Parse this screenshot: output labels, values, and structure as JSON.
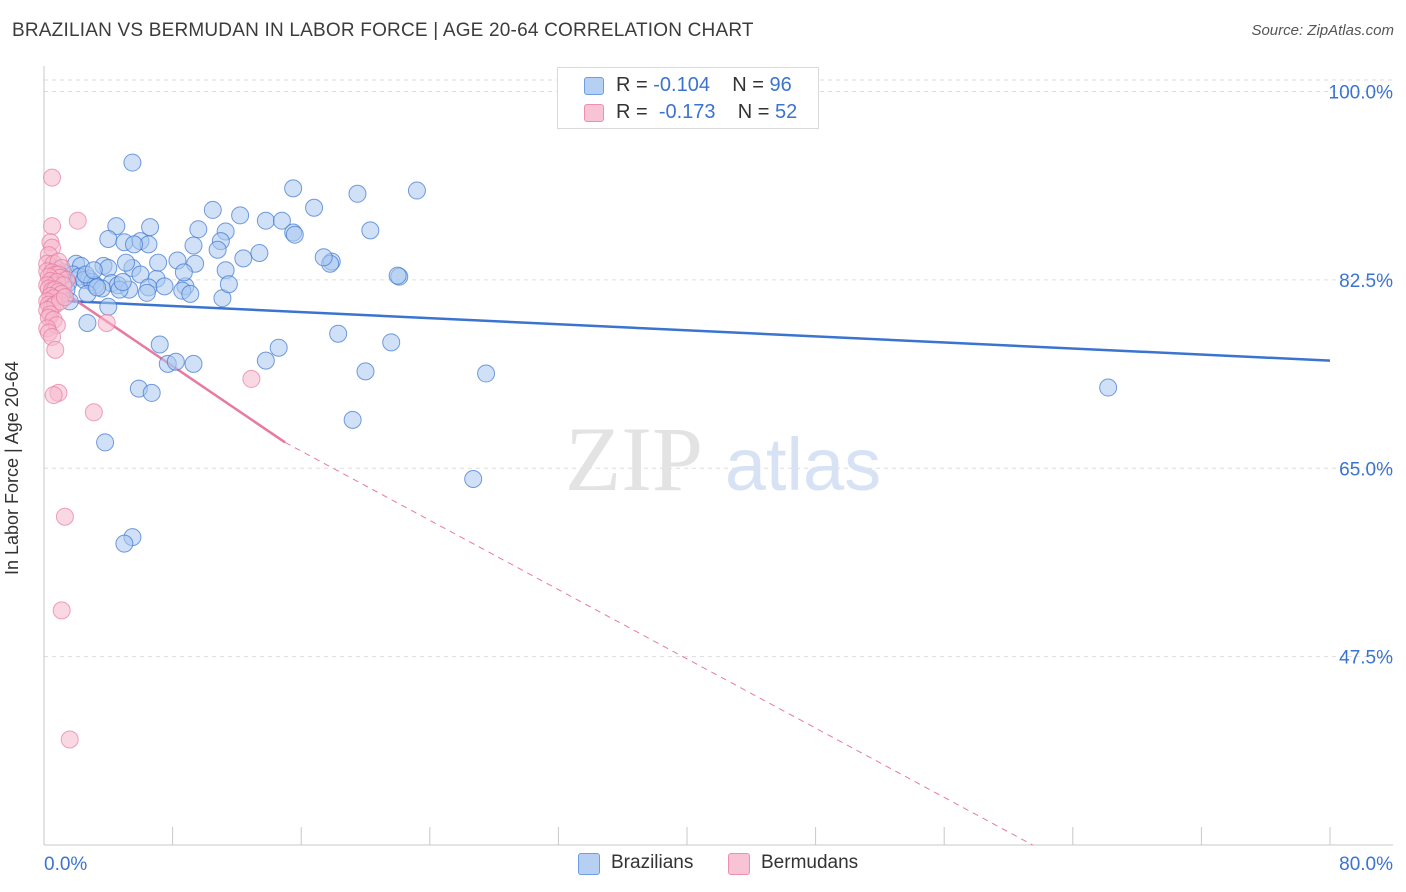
{
  "title": "BRAZILIAN VS BERMUDAN IN LABOR FORCE | AGE 20-64 CORRELATION CHART",
  "source": "Source: ZipAtlas.com",
  "colors": {
    "blue": "#3a74d0",
    "blue_fill": "#a9c8f0",
    "pink": "#e87aa0",
    "pink_fill": "#f6b8cc",
    "grid": "#dddddd",
    "axis_text": "#3a74d0"
  },
  "legend": {
    "series1": {
      "r_label": "R = ",
      "r_value": "-0.104",
      "n_label": "N = ",
      "n_value": "96"
    },
    "series2": {
      "r_label": "R = ",
      "r_value": "-0.173",
      "n_label": "N = ",
      "n_value": "52"
    }
  },
  "bottom_legend": {
    "series1": "Brazilians",
    "series2": "Bermudans"
  },
  "watermark": {
    "zip": "ZIP",
    "atlas": "atlas"
  },
  "chart_data": {
    "type": "scatter",
    "title": "BRAZILIAN VS BERMUDAN IN LABOR FORCE | AGE 20-64 CORRELATION CHART",
    "xlabel": "",
    "ylabel": "In Labor Force | Age 20-64",
    "xlim": [
      0,
      80
    ],
    "ylim": [
      30,
      102
    ],
    "x_tick_labels": [
      "0.0%",
      "80.0%"
    ],
    "y_ticks": [
      47.5,
      65.0,
      82.5,
      100.0
    ],
    "y_tick_labels": [
      "47.5%",
      "65.0%",
      "82.5%",
      "100.0%"
    ],
    "grid": true,
    "legend_position": "top-center",
    "series": [
      {
        "name": "Brazilians",
        "R": -0.104,
        "N": 96,
        "trend": {
          "x": [
            0.5,
            80.0
          ],
          "y": [
            80.6,
            75.0
          ],
          "style": "solid"
        },
        "points": [
          [
            5.5,
            93.4
          ],
          [
            15.5,
            91.0
          ],
          [
            19.5,
            90.5
          ],
          [
            10.5,
            89.0
          ],
          [
            12.2,
            88.5
          ],
          [
            13.8,
            88.0
          ],
          [
            14.8,
            88.0
          ],
          [
            4.5,
            87.5
          ],
          [
            6.6,
            87.4
          ],
          [
            9.6,
            87.2
          ],
          [
            11.3,
            87.0
          ],
          [
            4.0,
            86.3
          ],
          [
            11.0,
            86.1
          ],
          [
            5.0,
            86.0
          ],
          [
            6.0,
            86.1
          ],
          [
            9.3,
            85.7
          ],
          [
            6.5,
            85.8
          ],
          [
            5.6,
            85.8
          ],
          [
            10.8,
            85.3
          ],
          [
            12.4,
            84.5
          ],
          [
            9.4,
            84.0
          ],
          [
            8.3,
            84.3
          ],
          [
            13.4,
            85.0
          ],
          [
            17.9,
            84.2
          ],
          [
            17.8,
            84.0
          ],
          [
            2.0,
            84.0
          ],
          [
            2.3,
            83.8
          ],
          [
            3.7,
            83.8
          ],
          [
            4.0,
            83.6
          ],
          [
            5.5,
            83.6
          ],
          [
            6.0,
            83.0
          ],
          [
            7.0,
            82.6
          ],
          [
            0.8,
            83.5
          ],
          [
            1.2,
            83.2
          ],
          [
            1.8,
            83.0
          ],
          [
            2.2,
            82.8
          ],
          [
            2.8,
            82.6
          ],
          [
            0.5,
            82.5
          ],
          [
            0.7,
            82.2
          ],
          [
            1.5,
            82.2
          ],
          [
            2.5,
            82.5
          ],
          [
            3.0,
            82.3
          ],
          [
            3.2,
            82.0
          ],
          [
            4.2,
            82.2
          ],
          [
            4.6,
            82.0
          ],
          [
            3.6,
            81.7
          ],
          [
            6.5,
            81.8
          ],
          [
            8.8,
            81.9
          ],
          [
            5.3,
            81.6
          ],
          [
            8.6,
            81.5
          ],
          [
            6.4,
            81.3
          ],
          [
            2.7,
            81.2
          ],
          [
            1.0,
            81.0
          ],
          [
            4.7,
            81.6
          ],
          [
            1.4,
            81.6
          ],
          [
            0.6,
            81.3
          ],
          [
            2.6,
            83.0
          ],
          [
            3.3,
            81.8
          ],
          [
            7.5,
            81.9
          ],
          [
            8.7,
            83.2
          ],
          [
            11.3,
            83.4
          ],
          [
            7.1,
            84.1
          ],
          [
            5.1,
            84.1
          ],
          [
            3.1,
            83.4
          ],
          [
            1.1,
            82.8
          ],
          [
            4.9,
            82.3
          ],
          [
            9.1,
            81.2
          ],
          [
            11.1,
            80.8
          ],
          [
            11.5,
            82.1
          ],
          [
            1.6,
            80.5
          ],
          [
            4.0,
            80.0
          ],
          [
            2.7,
            78.5
          ],
          [
            22.1,
            82.8
          ],
          [
            22.0,
            82.9
          ],
          [
            20.3,
            87.1
          ],
          [
            23.2,
            90.8
          ],
          [
            15.5,
            86.9
          ],
          [
            16.8,
            89.2
          ],
          [
            17.4,
            84.6
          ],
          [
            15.6,
            86.7
          ],
          [
            18.3,
            77.5
          ],
          [
            21.6,
            76.7
          ],
          [
            14.6,
            76.2
          ],
          [
            13.8,
            75.0
          ],
          [
            7.7,
            74.7
          ],
          [
            9.3,
            74.7
          ],
          [
            7.2,
            76.5
          ],
          [
            8.2,
            74.9
          ],
          [
            5.9,
            72.4
          ],
          [
            6.7,
            72.0
          ],
          [
            27.5,
            73.8
          ],
          [
            19.2,
            69.5
          ],
          [
            66.2,
            72.5
          ],
          [
            20.0,
            74.0
          ],
          [
            26.7,
            64.0
          ],
          [
            3.8,
            67.4
          ],
          [
            5.5,
            58.6
          ],
          [
            5.0,
            58.0
          ]
        ]
      },
      {
        "name": "Bermudans",
        "R": -0.173,
        "N": 52,
        "trend": {
          "x": [
            0.0,
            15.0
          ],
          "y": [
            82.6,
            67.4
          ],
          "style": "solid"
        },
        "trend_extension": {
          "x": [
            15.0,
            61.5
          ],
          "y": [
            67.4,
            30.0
          ],
          "style": "dashed"
        },
        "points": [
          [
            0.5,
            92.0
          ],
          [
            2.1,
            88.0
          ],
          [
            0.5,
            87.5
          ],
          [
            0.4,
            86.0
          ],
          [
            0.5,
            85.5
          ],
          [
            0.3,
            84.8
          ],
          [
            0.2,
            84.0
          ],
          [
            0.6,
            84.0
          ],
          [
            0.9,
            84.2
          ],
          [
            1.1,
            83.6
          ],
          [
            0.2,
            83.3
          ],
          [
            0.5,
            83.2
          ],
          [
            0.7,
            83.0
          ],
          [
            0.9,
            83.0
          ],
          [
            1.0,
            82.7
          ],
          [
            1.4,
            82.5
          ],
          [
            0.3,
            82.8
          ],
          [
            0.4,
            82.4
          ],
          [
            0.6,
            82.0
          ],
          [
            0.8,
            82.3
          ],
          [
            1.2,
            82.0
          ],
          [
            0.2,
            82.0
          ],
          [
            0.3,
            81.7
          ],
          [
            0.5,
            81.5
          ],
          [
            0.7,
            81.6
          ],
          [
            0.9,
            81.4
          ],
          [
            1.1,
            81.2
          ],
          [
            0.4,
            81.0
          ],
          [
            0.6,
            80.8
          ],
          [
            0.2,
            80.5
          ],
          [
            0.3,
            80.2
          ],
          [
            0.5,
            80.0
          ],
          [
            0.7,
            80.2
          ],
          [
            1.0,
            80.5
          ],
          [
            1.3,
            80.9
          ],
          [
            0.2,
            79.7
          ],
          [
            0.4,
            79.3
          ],
          [
            0.3,
            79.0
          ],
          [
            0.6,
            78.8
          ],
          [
            0.8,
            78.3
          ],
          [
            0.2,
            78.0
          ],
          [
            0.3,
            77.6
          ],
          [
            0.5,
            77.2
          ],
          [
            0.7,
            76.0
          ],
          [
            3.9,
            78.5
          ],
          [
            12.9,
            73.3
          ],
          [
            0.9,
            72.0
          ],
          [
            0.6,
            71.8
          ],
          [
            3.1,
            70.2
          ],
          [
            1.3,
            60.5
          ],
          [
            1.1,
            51.8
          ],
          [
            1.6,
            39.8
          ]
        ]
      }
    ]
  }
}
